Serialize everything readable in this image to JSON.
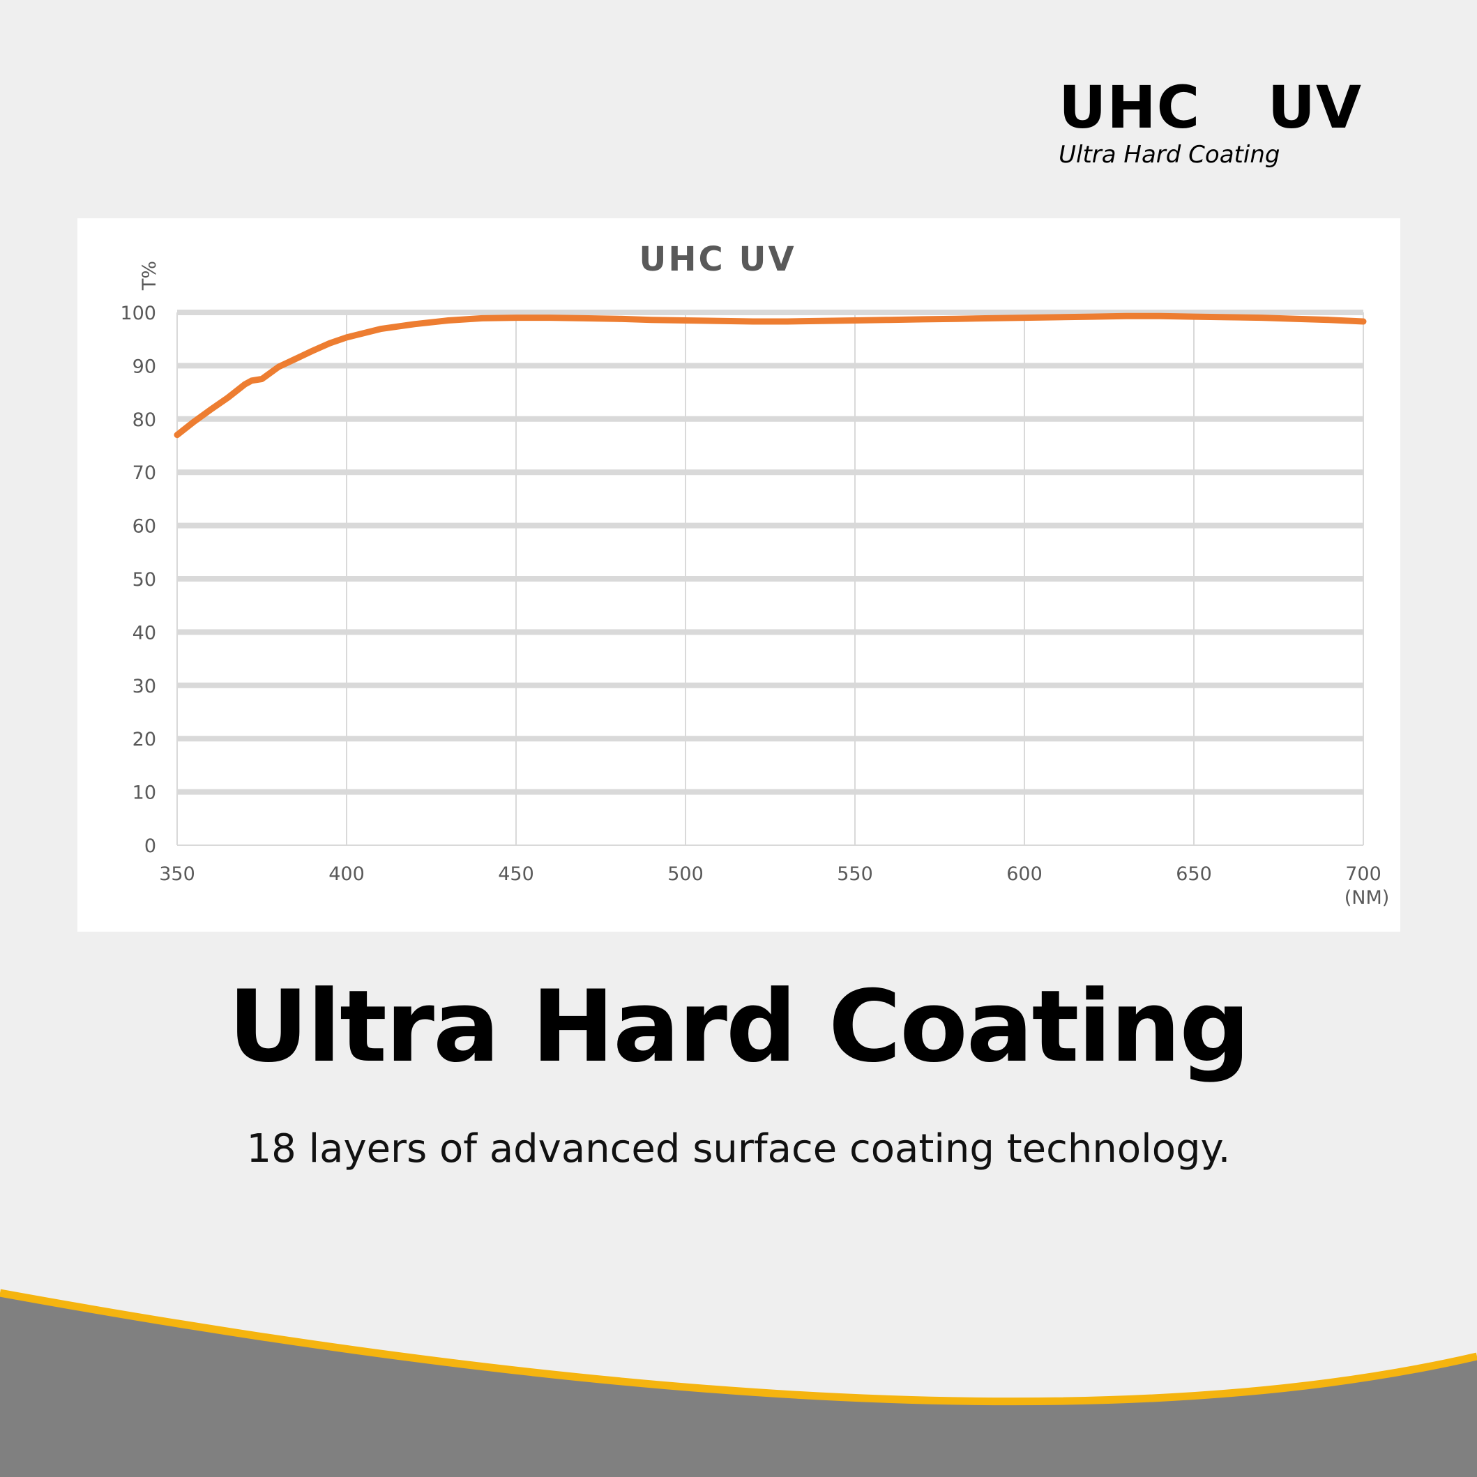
{
  "logo": {
    "main": "UHC  UV",
    "sub": "Ultra Hard Coating"
  },
  "heading": "Ultra Hard Coating",
  "subheading": "18 layers of advanced surface coating technology.",
  "colors": {
    "line": "#ed7d31",
    "grid": "#d9d9d9",
    "wave": "#808080",
    "wave_edge": "#f5b40f",
    "background": "#efefef"
  },
  "chart_data": {
    "type": "line",
    "title": "UHC UV",
    "ylabel": "T%",
    "xlabel": "(NM)",
    "xlim": [
      350,
      700
    ],
    "ylim": [
      0,
      100
    ],
    "xticks": [
      350,
      400,
      450,
      500,
      550,
      600,
      650,
      700
    ],
    "yticks": [
      0,
      10,
      20,
      30,
      40,
      50,
      60,
      70,
      80,
      90,
      100
    ],
    "grid": true,
    "x": [
      350,
      355,
      360,
      365,
      370,
      372,
      375,
      380,
      385,
      390,
      395,
      400,
      410,
      420,
      430,
      440,
      450,
      460,
      470,
      480,
      490,
      500,
      510,
      520,
      530,
      540,
      550,
      560,
      570,
      580,
      590,
      600,
      610,
      620,
      630,
      640,
      650,
      660,
      670,
      680,
      690,
      700
    ],
    "y": [
      77,
      79.5,
      81.8,
      84,
      86.5,
      87.2,
      87.5,
      89.8,
      91.3,
      92.8,
      94.2,
      95.3,
      96.9,
      97.8,
      98.5,
      98.9,
      99,
      99,
      98.9,
      98.8,
      98.6,
      98.5,
      98.4,
      98.3,
      98.3,
      98.4,
      98.5,
      98.6,
      98.7,
      98.8,
      98.9,
      99,
      99.1,
      99.2,
      99.3,
      99.3,
      99.2,
      99.1,
      99,
      98.8,
      98.6,
      98.3
    ]
  }
}
